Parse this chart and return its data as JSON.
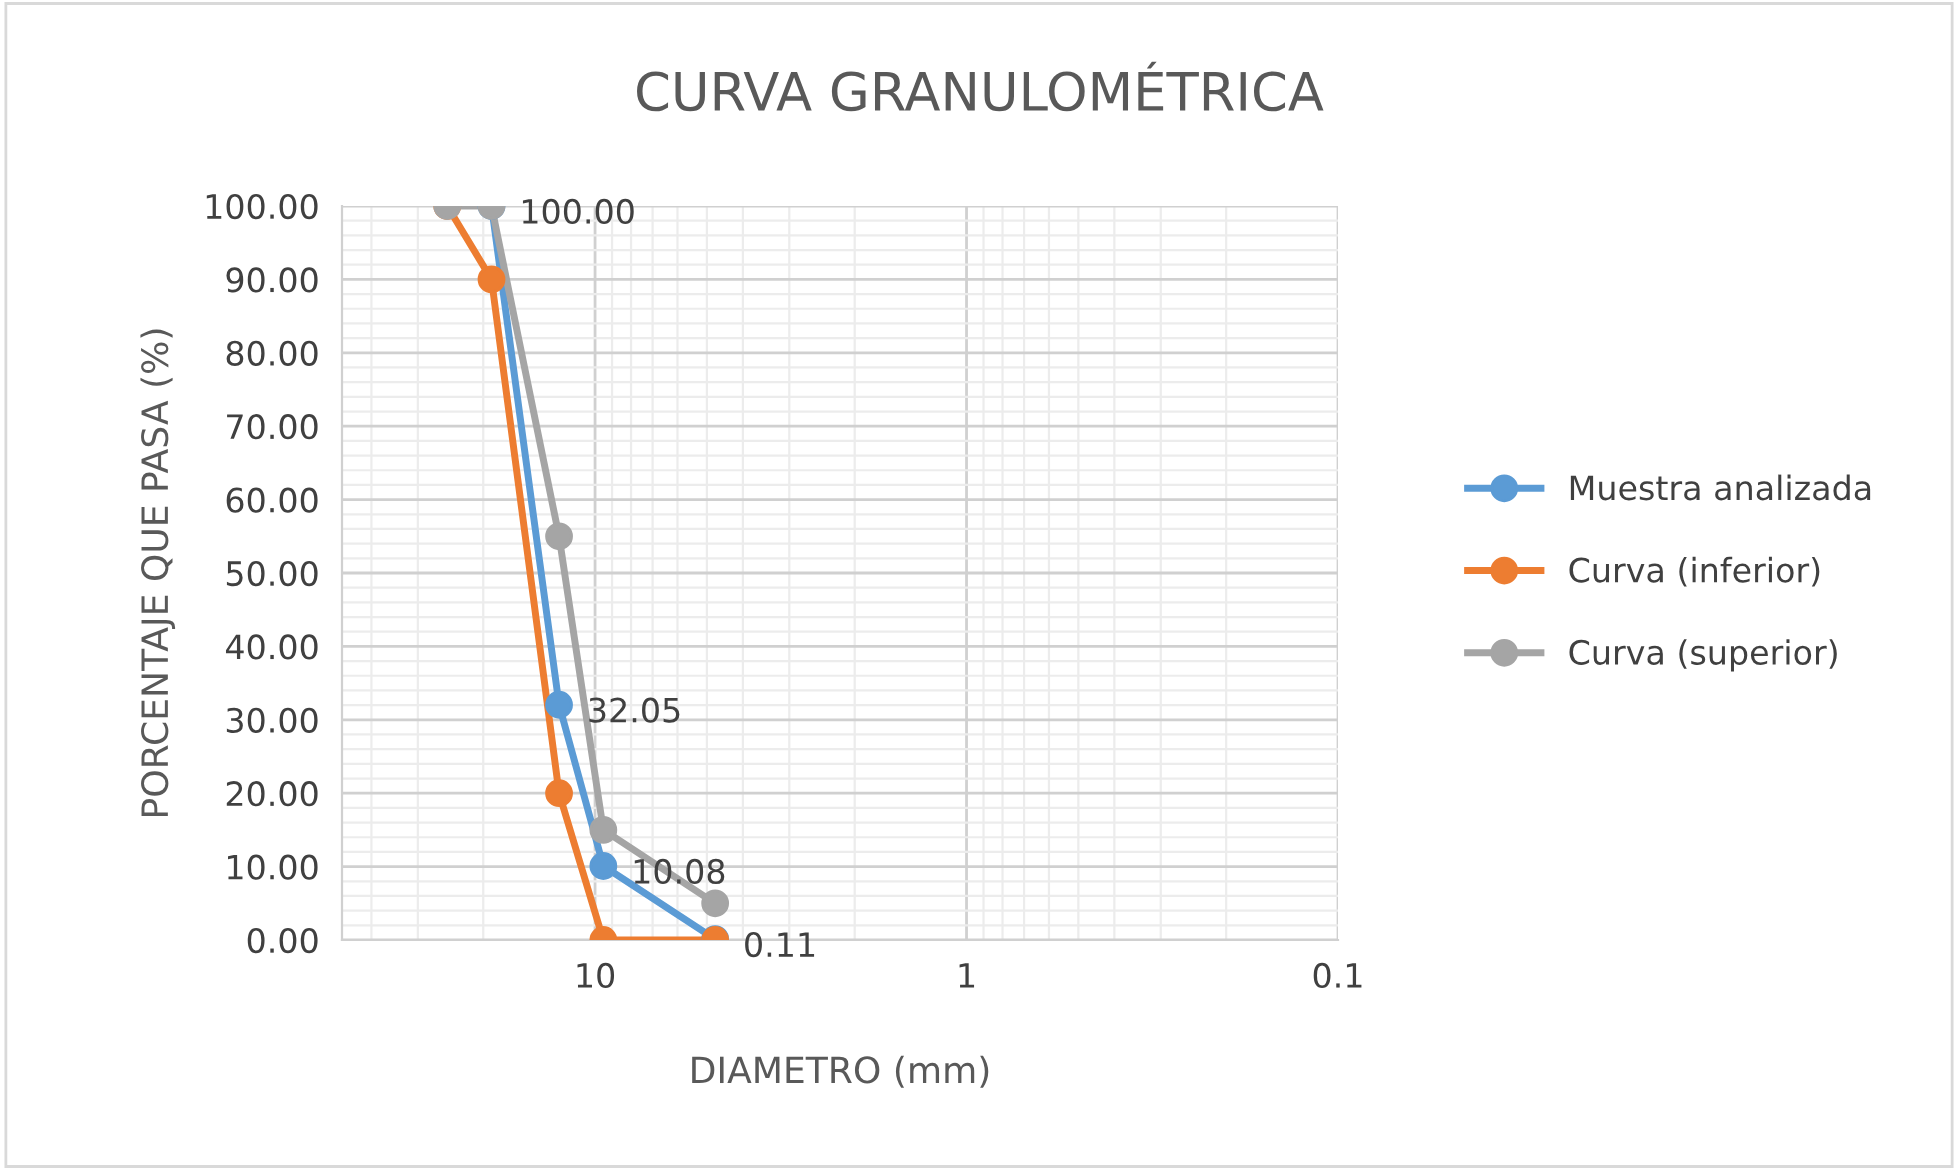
{
  "chart_data": {
    "type": "line",
    "title": "CURVA GRANULOMÉTRICA",
    "xlabel": "DIAMETRO (mm)",
    "ylabel": "PORCENTAJE QUE PASA (%)",
    "log": "x",
    "xlim": [
      48,
      0.1
    ],
    "xticks": [
      10,
      1,
      0.1
    ],
    "ylim": [
      0,
      100
    ],
    "yticks": [
      {
        "value": 0,
        "label": "0.00"
      },
      {
        "value": 10,
        "label": "10.00"
      },
      {
        "value": 20,
        "label": "20.00"
      },
      {
        "value": 30,
        "label": "30.00"
      },
      {
        "value": 40,
        "label": "40.00"
      },
      {
        "value": 50,
        "label": "50.00"
      },
      {
        "value": 60,
        "label": "60.00"
      },
      {
        "value": 70,
        "label": "70.00"
      },
      {
        "value": 80,
        "label": "80.00"
      },
      {
        "value": 90,
        "label": "90.00"
      },
      {
        "value": 100,
        "label": "100.00"
      }
    ],
    "grid": true,
    "legend": "right",
    "marker": "circle",
    "line_style": "solid",
    "series": [
      {
        "name": "Muestra analizada",
        "color": "#5b9bd5",
        "x": [
          19,
          12.5,
          9.5,
          4.75
        ],
        "values": [
          100,
          32.05,
          10.08,
          0.11
        ],
        "value_labels": [
          "100.00",
          "32.05",
          "10.08",
          "0.11"
        ]
      },
      {
        "name": "Curva (inferior)",
        "color": "#ed7d31",
        "x": [
          25,
          19,
          12.5,
          9.5,
          4.75
        ],
        "values": [
          100,
          90,
          20,
          0,
          0
        ]
      },
      {
        "name": "Curva (superior)",
        "color": "#a5a5a5",
        "x": [
          25,
          19,
          12.5,
          9.5,
          4.75
        ],
        "values": [
          100,
          100,
          55,
          15,
          5
        ]
      }
    ]
  }
}
